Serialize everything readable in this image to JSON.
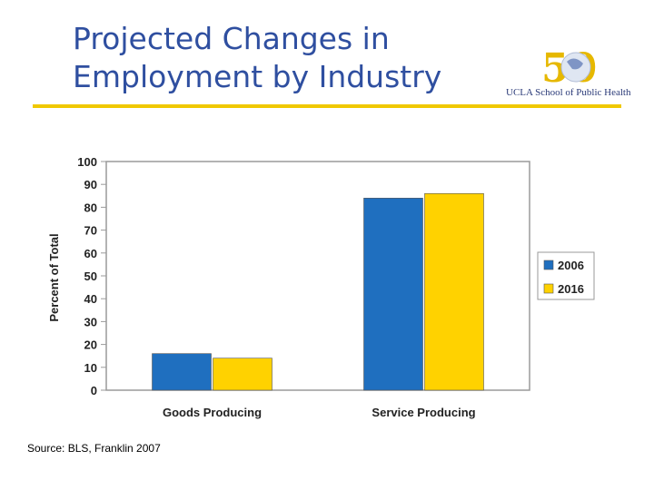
{
  "title": "Projected Changes in Employment by Industry",
  "logo": {
    "text": "UCLA School of Public Health",
    "mark": "50"
  },
  "source": "Source: BLS, Franklin 2007",
  "colors": {
    "title": "#2f4fa0",
    "rule": "#f0c800",
    "series_2006": "#1f6fbf",
    "series_2016": "#ffd200"
  },
  "chart_data": {
    "type": "bar",
    "title": "",
    "xlabel": "",
    "ylabel": "Percent of Total",
    "categories": [
      "Goods Producing",
      "Service Producing"
    ],
    "series": [
      {
        "name": "2006",
        "values": [
          16,
          84
        ],
        "color": "#1f6fbf"
      },
      {
        "name": "2016",
        "values": [
          14,
          86
        ],
        "color": "#ffd200"
      }
    ],
    "ylim": [
      0,
      100
    ],
    "yticks": [
      0,
      10,
      20,
      30,
      40,
      50,
      60,
      70,
      80,
      90,
      100
    ],
    "grid": false,
    "legend": "right"
  }
}
